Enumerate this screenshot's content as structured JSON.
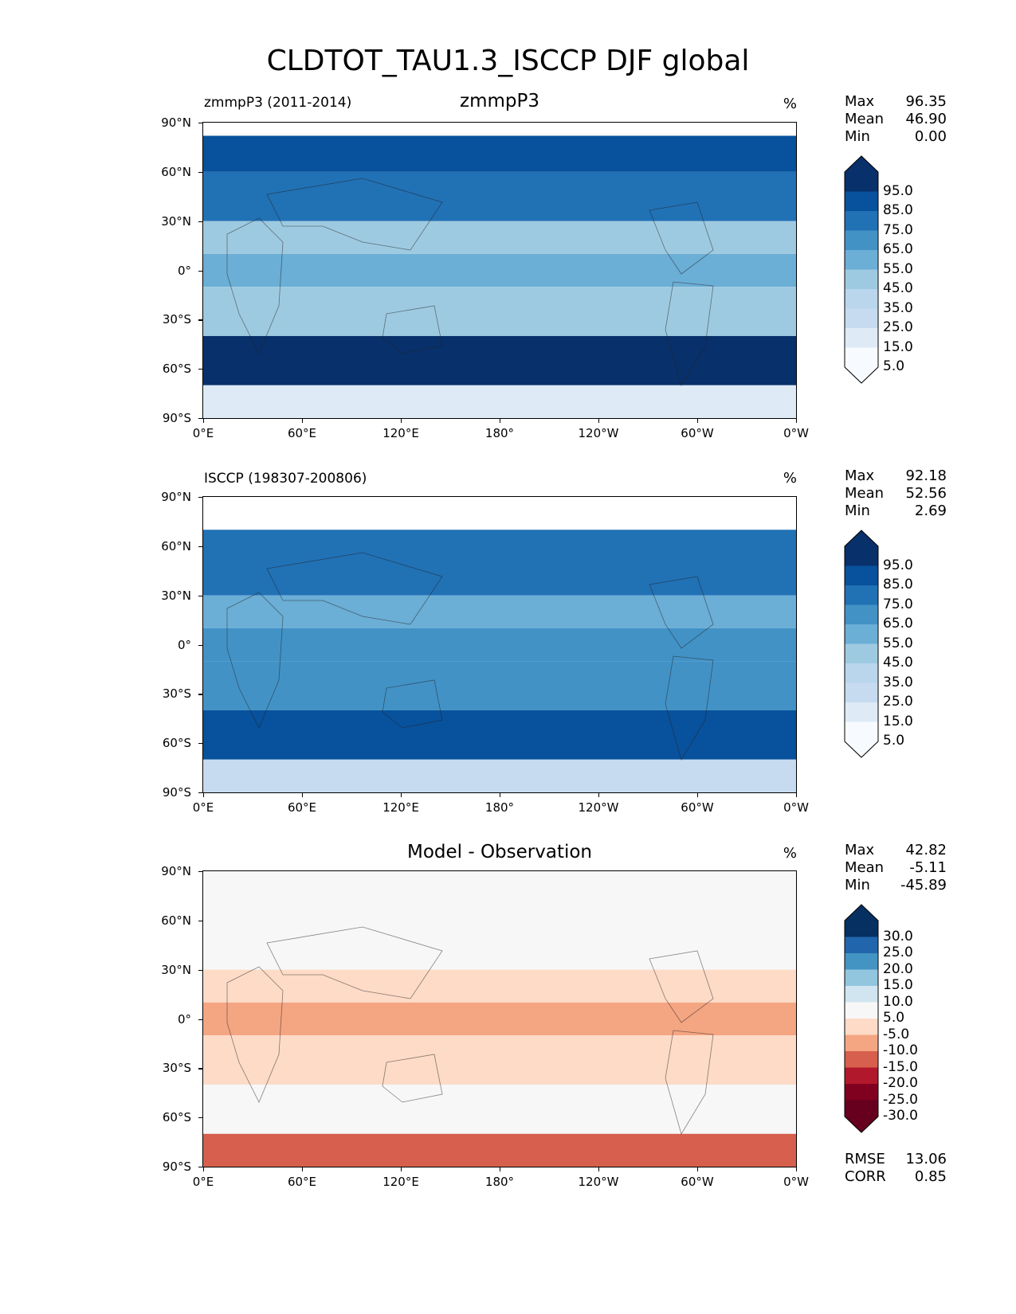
{
  "figure": {
    "title": "CLDTOT_TAU1.3_ISCCP DJF global"
  },
  "axes": {
    "yticks": [
      "90°N",
      "60°N",
      "30°N",
      "0°",
      "30°S",
      "60°S",
      "90°S"
    ],
    "xticks": [
      "0°E",
      "60°E",
      "120°E",
      "180°",
      "120°W",
      "60°W",
      "0°W"
    ]
  },
  "panels": [
    {
      "left_title": "zmmpP3 (2011-2014)",
      "center_title": "zmmpP3",
      "units": "%",
      "stats": [
        {
          "label": "Max",
          "value": "96.35"
        },
        {
          "label": "Mean",
          "value": "46.90"
        },
        {
          "label": "Min",
          "value": "0.00"
        }
      ],
      "colorbar_labels": [
        "95.0",
        "85.0",
        "75.0",
        "65.0",
        "55.0",
        "45.0",
        "35.0",
        "25.0",
        "15.0",
        "5.0"
      ],
      "colorbar_colors": [
        "#08306b",
        "#08519c",
        "#2171b5",
        "#4292c6",
        "#6baed6",
        "#9ecae1",
        "#b9d6ec",
        "#c6dbef",
        "#deebf7",
        "#f7fbff"
      ]
    },
    {
      "left_title": "ISCCP (198307-200806)",
      "center_title": "",
      "units": "%",
      "stats": [
        {
          "label": "Max",
          "value": "92.18"
        },
        {
          "label": "Mean",
          "value": "52.56"
        },
        {
          "label": "Min",
          "value": "2.69"
        }
      ],
      "colorbar_labels": [
        "95.0",
        "85.0",
        "75.0",
        "65.0",
        "55.0",
        "45.0",
        "35.0",
        "25.0",
        "15.0",
        "5.0"
      ],
      "colorbar_colors": [
        "#08306b",
        "#08519c",
        "#2171b5",
        "#4292c6",
        "#6baed6",
        "#9ecae1",
        "#b9d6ec",
        "#c6dbef",
        "#deebf7",
        "#f7fbff"
      ]
    },
    {
      "left_title": "",
      "center_title": "Model - Observation",
      "units": "%",
      "stats": [
        {
          "label": "Max",
          "value": "42.82"
        },
        {
          "label": "Mean",
          "value": "-5.11"
        },
        {
          "label": "Min",
          "value": "-45.89"
        }
      ],
      "extra_stats": [
        {
          "label": "RMSE",
          "value": "13.06"
        },
        {
          "label": "CORR",
          "value": "0.85"
        }
      ],
      "colorbar_labels": [
        "30.0",
        "25.0",
        "20.0",
        "15.0",
        "10.0",
        "5.0",
        "-5.0",
        "-10.0",
        "-15.0",
        "-20.0",
        "-25.0",
        "-30.0"
      ],
      "colorbar_colors": [
        "#053061",
        "#2166ac",
        "#4393c3",
        "#92c5de",
        "#d1e5f0",
        "#f7f7f7",
        "#fddbc7",
        "#f4a582",
        "#d6604d",
        "#b2182b",
        "#800020",
        "#67001f"
      ]
    }
  ],
  "chart_data": [
    {
      "type": "heatmap",
      "title": "zmmpP3",
      "subtitle": "zmmpP3 (2011-2014)",
      "units": "%",
      "x_ticks": [
        "0°E",
        "60°E",
        "120°E",
        "180°",
        "120°W",
        "60°W",
        "0°W"
      ],
      "y_ticks": [
        "90°N",
        "60°N",
        "30°N",
        "0°",
        "30°S",
        "60°S",
        "90°S"
      ],
      "xlim": [
        0,
        360
      ],
      "ylim": [
        -90,
        90
      ],
      "levels": [
        5,
        15,
        25,
        35,
        45,
        55,
        65,
        75,
        85,
        95
      ],
      "zonal_bands": [
        {
          "lat": [
            60,
            82
          ],
          "value": 75
        },
        {
          "lat": [
            30,
            60
          ],
          "value": 65
        },
        {
          "lat": [
            10,
            30
          ],
          "value": 35
        },
        {
          "lat": [
            -10,
            10
          ],
          "value": 45
        },
        {
          "lat": [
            -40,
            -10
          ],
          "value": 40
        },
        {
          "lat": [
            -70,
            -40
          ],
          "value": 85
        },
        {
          "lat": [
            -90,
            -70
          ],
          "value": 10
        }
      ],
      "stats": {
        "Max": 96.35,
        "Mean": 46.9,
        "Min": 0.0
      }
    },
    {
      "type": "heatmap",
      "title": "",
      "subtitle": "ISCCP (198307-200806)",
      "units": "%",
      "x_ticks": [
        "0°E",
        "60°E",
        "120°E",
        "180°",
        "120°W",
        "60°W",
        "0°W"
      ],
      "y_ticks": [
        "90°N",
        "60°N",
        "30°N",
        "0°",
        "30°S",
        "60°S",
        "90°S"
      ],
      "xlim": [
        0,
        360
      ],
      "ylim": [
        -90,
        90
      ],
      "levels": [
        5,
        15,
        25,
        35,
        45,
        55,
        65,
        75,
        85,
        95
      ],
      "zonal_bands": [
        {
          "lat": [
            70,
            90
          ],
          "value": 0
        },
        {
          "lat": [
            30,
            70
          ],
          "value": 65
        },
        {
          "lat": [
            10,
            30
          ],
          "value": 50
        },
        {
          "lat": [
            -10,
            10
          ],
          "value": 60
        },
        {
          "lat": [
            -40,
            -10
          ],
          "value": 55
        },
        {
          "lat": [
            -70,
            -40
          ],
          "value": 80
        },
        {
          "lat": [
            -90,
            -70
          ],
          "value": 20
        }
      ],
      "stats": {
        "Max": 92.18,
        "Mean": 52.56,
        "Min": 2.69
      }
    },
    {
      "type": "heatmap",
      "title": "Model - Observation",
      "subtitle": "",
      "units": "%",
      "x_ticks": [
        "0°E",
        "60°E",
        "120°E",
        "180°",
        "120°W",
        "60°W",
        "0°W"
      ],
      "y_ticks": [
        "90°N",
        "60°N",
        "30°N",
        "0°",
        "30°S",
        "60°S",
        "90°S"
      ],
      "xlim": [
        0,
        360
      ],
      "ylim": [
        -90,
        90
      ],
      "levels": [
        -30,
        -25,
        -20,
        -15,
        -10,
        -5,
        5,
        10,
        15,
        20,
        25,
        30
      ],
      "zonal_bands": [
        {
          "lat": [
            70,
            90
          ],
          "value": 0
        },
        {
          "lat": [
            30,
            70
          ],
          "value": -5
        },
        {
          "lat": [
            10,
            30
          ],
          "value": -10
        },
        {
          "lat": [
            -10,
            10
          ],
          "value": -12
        },
        {
          "lat": [
            -40,
            -10
          ],
          "value": -8
        },
        {
          "lat": [
            -70,
            -40
          ],
          "value": 0
        },
        {
          "lat": [
            -90,
            -70
          ],
          "value": -20
        }
      ],
      "stats": {
        "Max": 42.82,
        "Mean": -5.11,
        "Min": -45.89,
        "RMSE": 13.06,
        "CORR": 0.85
      }
    }
  ]
}
